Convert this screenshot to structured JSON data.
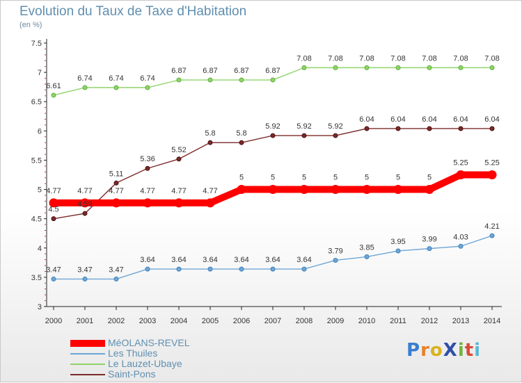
{
  "title": "Evolution du Taux de Taxe d'Habitation",
  "subtitle": "(en %)",
  "logo": {
    "letters": [
      {
        "ch": "P",
        "color": "#3a7ed0"
      },
      {
        "ch": "r",
        "color": "#e8812a"
      },
      {
        "ch": "o",
        "color": "#d9b21e"
      },
      {
        "ch": "X",
        "color": "#2f4fa8"
      },
      {
        "ch": "i",
        "color": "#6fb43f"
      },
      {
        "ch": "t",
        "color": "#d94c3a"
      },
      {
        "ch": "i",
        "color": "#5cb7d6"
      }
    ]
  },
  "chart_data": {
    "type": "line",
    "title": "Evolution du Taux de Taxe d'Habitation",
    "subtitle": "(en %)",
    "x": [
      "2000",
      "2001",
      "2002",
      "2003",
      "2004",
      "2005",
      "2006",
      "2007",
      "2008",
      "2009",
      "2010",
      "2011",
      "2012",
      "2013",
      "2014"
    ],
    "ylim": [
      3,
      7.5
    ],
    "yticks": [
      "3",
      "3.5",
      "4",
      "4.5",
      "5",
      "5.5",
      "6",
      "6.5",
      "7",
      "7.5"
    ],
    "grid": false,
    "legend_position": "bottom-left",
    "series": [
      {
        "name": "MéOLANS-REVEL",
        "color": "#ff0000",
        "values": [
          4.77,
          4.77,
          4.77,
          4.77,
          4.77,
          4.77,
          5,
          5,
          5,
          5,
          5,
          5,
          5,
          5.25,
          5.25
        ],
        "labels": [
          "4.77",
          "4.77",
          "4.77",
          "4.77",
          "4.77",
          "4.77",
          "5",
          "5",
          "5",
          "5",
          "5",
          "5",
          "5",
          "5.25",
          "5.25"
        ]
      },
      {
        "name": "Les Thuiles",
        "color": "#6fa6d6",
        "values": [
          3.47,
          3.47,
          3.47,
          3.64,
          3.64,
          3.64,
          3.64,
          3.64,
          3.64,
          3.79,
          3.85,
          3.95,
          3.99,
          4.03,
          4.21
        ],
        "labels": [
          "3.47",
          "3.47",
          "3.47",
          "3.64",
          "3.64",
          "3.64",
          "3.64",
          "3.64",
          "3.64",
          "3.79",
          "3.85",
          "3.95",
          "3.99",
          "4.03",
          "4.21"
        ]
      },
      {
        "name": "Le Lauzet-Ubaye",
        "color": "#8fd46a",
        "values": [
          6.61,
          6.74,
          6.74,
          6.74,
          6.87,
          6.87,
          6.87,
          6.87,
          7.08,
          7.08,
          7.08,
          7.08,
          7.08,
          7.08,
          7.08
        ],
        "labels": [
          "6.61",
          "6.74",
          "6.74",
          "6.74",
          "6.87",
          "6.87",
          "6.87",
          "6.87",
          "7.08",
          "7.08",
          "7.08",
          "7.08",
          "7.08",
          "7.08",
          "7.08"
        ]
      },
      {
        "name": "Saint-Pons",
        "color": "#7a2a2a",
        "values": [
          4.5,
          4.59,
          5.11,
          5.36,
          5.52,
          5.8,
          5.8,
          5.92,
          5.92,
          5.92,
          6.04,
          6.04,
          6.04,
          6.04,
          6.04
        ],
        "labels": [
          "4.5",
          "4.59",
          "5.11",
          "5.36",
          "5.52",
          "5.8",
          "5.8",
          "5.92",
          "5.92",
          "5.92",
          "6.04",
          "6.04",
          "6.04",
          "6.04",
          "6.04"
        ]
      }
    ]
  }
}
